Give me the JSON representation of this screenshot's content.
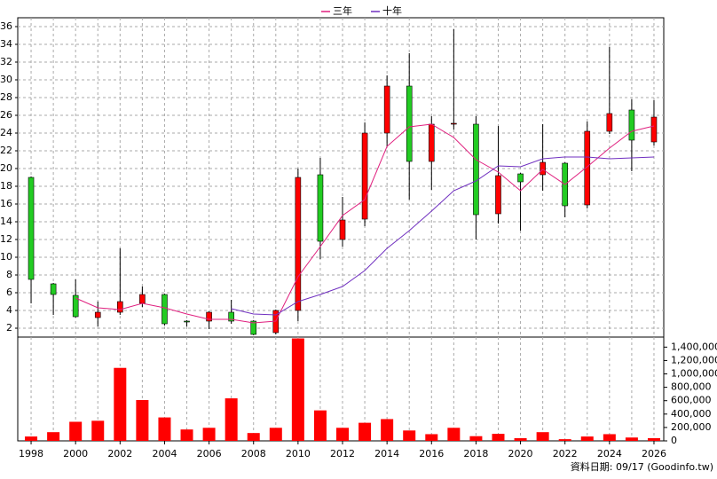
{
  "chart_data": [
    {
      "type": "candlestick",
      "x": [
        1998,
        1999,
        2000,
        2001,
        2002,
        2003,
        2004,
        2005,
        2006,
        2007,
        2008,
        2009,
        2010,
        2011,
        2012,
        2013,
        2014,
        2015,
        2016,
        2017,
        2018,
        2019,
        2020,
        2021,
        2022,
        2023,
        2024,
        2025,
        2026
      ],
      "open": [
        19,
        7,
        5.7,
        3.2,
        3.8,
        4.8,
        5.8,
        2.8,
        2.8,
        3.8,
        2.8,
        1.5,
        4,
        19.3,
        12,
        14.3,
        24,
        29.3,
        20.8,
        25,
        25,
        14.9,
        19.4,
        19.3,
        20.6,
        15.9,
        24.2,
        26.6,
        23
      ],
      "high": [
        19.1,
        7.1,
        7.5,
        5,
        11,
        6.7,
        5.9,
        2.9,
        3.9,
        5.2,
        2.9,
        4.1,
        20,
        21.2,
        16.8,
        25.2,
        30.5,
        33,
        25.9,
        35.7,
        25.9,
        24.8,
        19.5,
        25,
        20.7,
        25.3,
        33.7,
        27.8,
        27.7
      ],
      "low": [
        4.8,
        3.5,
        3.2,
        2.2,
        3.5,
        4.4,
        2.3,
        2.2,
        1.9,
        2.5,
        1.2,
        1.3,
        2.8,
        9.8,
        11.2,
        13.5,
        22.5,
        16.5,
        17.6,
        24.4,
        12,
        13.8,
        13,
        17.5,
        14.5,
        15.5,
        23.9,
        19.7,
        22.6
      ],
      "close": [
        7.5,
        5.8,
        3.3,
        3.8,
        5,
        5.8,
        2.5,
        2.7,
        3.8,
        2.8,
        1.3,
        4,
        19,
        11.8,
        14.2,
        24,
        29.3,
        20.8,
        25,
        25.1,
        14.8,
        19.2,
        18.5,
        20.7,
        15.8,
        24.2,
        26.2,
        23.2,
        25.8
      ],
      "up_color": "#ff0000",
      "down_color": "#22cc22",
      "series": [
        {
          "name": "三年",
          "color": "#e0207f",
          "values": [
            null,
            null,
            5.4,
            4.3,
            4.1,
            4.8,
            4.3,
            3.6,
            3.0,
            3.0,
            2.6,
            2.8,
            7.8,
            11.2,
            14.7,
            16.5,
            22.5,
            24.7,
            25.0,
            23.5,
            21.0,
            19.6,
            17.5,
            19.9,
            18.2,
            20.2,
            22.3,
            24.2,
            24.8
          ]
        },
        {
          "name": "十年",
          "color": "#7030c0",
          "values": [
            null,
            null,
            null,
            null,
            null,
            null,
            null,
            null,
            null,
            4.2,
            3.6,
            3.5,
            5.0,
            5.8,
            6.7,
            8.5,
            11.0,
            13.0,
            15.2,
            17.5,
            18.6,
            20.3,
            20.2,
            21.1,
            21.3,
            21.3,
            21.1,
            21.2,
            21.3
          ]
        }
      ],
      "xlim": [
        1997.4,
        2026.44
      ],
      "ylim": [
        1,
        37
      ],
      "yticks": [
        2,
        4,
        6,
        8,
        10,
        12,
        14,
        16,
        18,
        20,
        22,
        24,
        26,
        28,
        30,
        32,
        34,
        36
      ],
      "grid": true
    },
    {
      "type": "bar",
      "x": [
        1998,
        1999,
        2000,
        2001,
        2002,
        2003,
        2004,
        2005,
        2006,
        2007,
        2008,
        2009,
        2010,
        2011,
        2012,
        2013,
        2014,
        2015,
        2016,
        2017,
        2018,
        2019,
        2020,
        2021,
        2022,
        2023,
        2024,
        2025,
        2026
      ],
      "values": [
        65000,
        130000,
        285000,
        300000,
        1090000,
        610000,
        350000,
        170000,
        195000,
        635000,
        117000,
        195000,
        1530000,
        455000,
        195000,
        270000,
        325000,
        155000,
        100000,
        195000,
        70000,
        105000,
        40000,
        130000,
        25000,
        65000,
        100000,
        50000,
        40000
      ],
      "color": "#ff0000",
      "xlim": [
        1997.4,
        2026.44
      ],
      "xticks": [
        1998,
        2000,
        2002,
        2004,
        2006,
        2008,
        2010,
        2012,
        2014,
        2016,
        2018,
        2020,
        2022,
        2024,
        2026
      ],
      "ylim": [
        0,
        1550000
      ],
      "yticks": [
        0,
        {
          "value": 200000,
          "label": "200,000"
        },
        {
          "value": 400000,
          "label": "400,000"
        },
        {
          "value": 600000,
          "label": "600,000"
        },
        {
          "value": 800000,
          "label": "800,000"
        },
        {
          "value": 1000000,
          "label": "1,000,000"
        },
        {
          "value": 1200000,
          "label": "1,200,000"
        },
        {
          "value": 1400000,
          "label": "1,400,000"
        }
      ],
      "grid": "x"
    }
  ],
  "footer": "資料日期: 09/17 (Goodinfo.tw)"
}
